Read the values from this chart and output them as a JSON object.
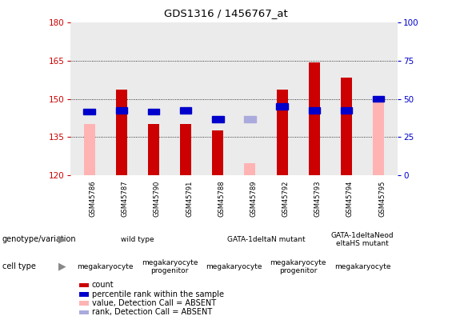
{
  "title": "GDS1316 / 1456767_at",
  "samples": [
    "GSM45786",
    "GSM45787",
    "GSM45790",
    "GSM45791",
    "GSM45788",
    "GSM45789",
    "GSM45792",
    "GSM45793",
    "GSM45794",
    "GSM45795"
  ],
  "ylim_left": [
    120,
    180
  ],
  "ylim_right": [
    0,
    100
  ],
  "yticks_left": [
    120,
    135,
    150,
    165,
    180
  ],
  "yticks_right": [
    0,
    25,
    50,
    75,
    100
  ],
  "red_bars": [
    null,
    153.5,
    140.0,
    140.0,
    137.5,
    null,
    153.5,
    164.5,
    158.5,
    null
  ],
  "pink_bars": [
    140.0,
    null,
    null,
    null,
    null,
    124.5,
    null,
    null,
    null,
    150.0
  ],
  "blue_sq_vals": [
    145.0,
    145.5,
    145.0,
    145.5,
    142.0,
    null,
    147.0,
    145.5,
    145.5,
    150.0
  ],
  "lightblue_sq_vals": [
    null,
    null,
    null,
    null,
    null,
    142.0,
    null,
    null,
    null,
    null
  ],
  "red_bar_color": "#cc0000",
  "pink_bar_color": "#ffb3b3",
  "blue_sq_color": "#0000cc",
  "lightblue_sq_color": "#aaaadd",
  "bar_width": 0.35,
  "genotype_groups": [
    {
      "label": "wild type",
      "start": 0,
      "end": 3,
      "color": "#ccffcc"
    },
    {
      "label": "GATA-1deltaN mutant",
      "start": 4,
      "end": 7,
      "color": "#aaffaa"
    },
    {
      "label": "GATA-1deltaNeod\neltaHS mutant",
      "start": 8,
      "end": 9,
      "color": "#88dd88"
    }
  ],
  "celltype_groups": [
    {
      "label": "megakaryocyte",
      "start": 0,
      "end": 1,
      "color": "#ffaaff"
    },
    {
      "label": "megakaryocyte\nprogenitor",
      "start": 2,
      "end": 3,
      "color": "#ff88ff"
    },
    {
      "label": "megakaryocyte",
      "start": 4,
      "end": 5,
      "color": "#ffaaff"
    },
    {
      "label": "megakaryocyte\nprogenitor",
      "start": 6,
      "end": 7,
      "color": "#ff88ff"
    },
    {
      "label": "megakaryocyte",
      "start": 8,
      "end": 9,
      "color": "#ffaaff"
    }
  ],
  "legend_items": [
    {
      "color": "#cc0000",
      "label": "count"
    },
    {
      "color": "#0000cc",
      "label": "percentile rank within the sample"
    },
    {
      "color": "#ffb3b3",
      "label": "value, Detection Call = ABSENT"
    },
    {
      "color": "#aaaadd",
      "label": "rank, Detection Call = ABSENT"
    }
  ],
  "row_label_genotype": "genotype/variation",
  "row_label_celltype": "cell type",
  "axis_color_left": "#cc0000",
  "axis_color_right": "#0000cc",
  "plot_bg": "#ebebeb",
  "fig_bg": "#ffffff"
}
